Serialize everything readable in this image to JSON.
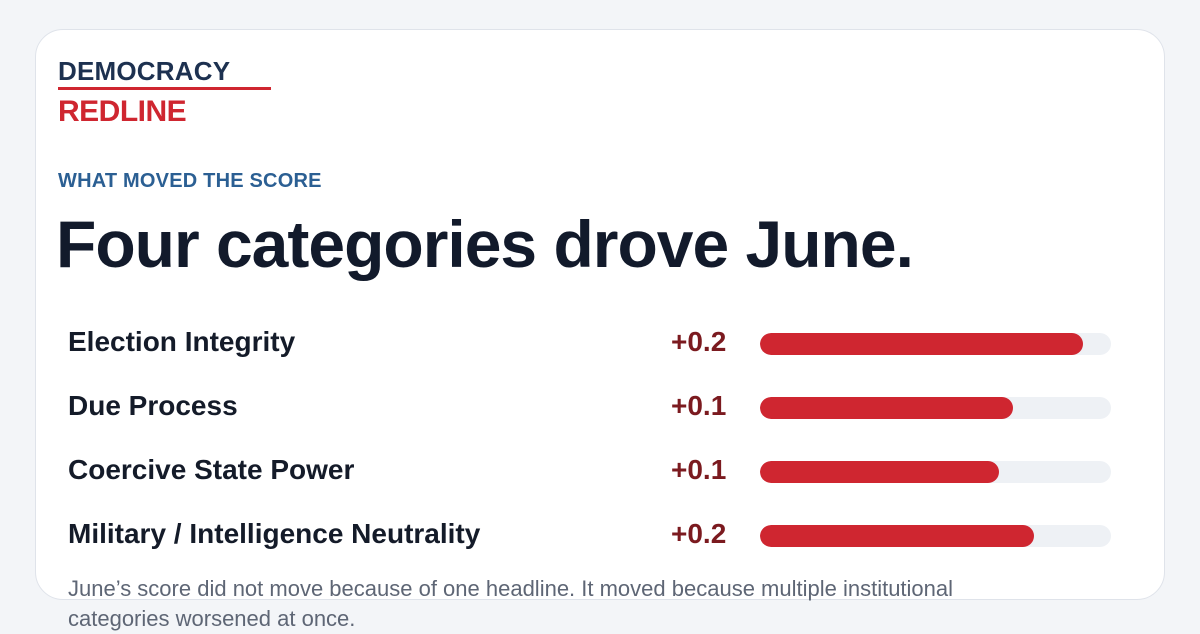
{
  "brand": {
    "line1": "DEMOCRACY",
    "line2": "REDLINE",
    "accent": "#cf2630",
    "navy": "#1d3150"
  },
  "eyebrow": "WHAT MOVED THE SCORE",
  "headline": "Four categories drove June.",
  "categories": [
    {
      "label": "Election Integrity",
      "delta": "+0.2",
      "bar_fraction": 0.92
    },
    {
      "label": "Due Process",
      "delta": "+0.1",
      "bar_fraction": 0.72
    },
    {
      "label": "Coercive State Power",
      "delta": "+0.1",
      "bar_fraction": 0.68
    },
    {
      "label": "Military / Intelligence Neutrality",
      "delta": "+0.2",
      "bar_fraction": 0.78
    }
  ],
  "footnote": "June’s score did not move because of one headline. It moved because multiple institutional categories worsened at once."
}
